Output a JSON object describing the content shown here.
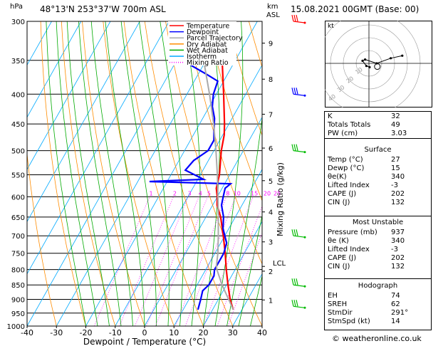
{
  "header": {
    "location": "48°13'N  253°37'W  700m  ASL",
    "datetime": "15.08.2021  00GMT  (Base: 00)",
    "hpa_label": "hPa",
    "km_label": "km",
    "asl_label": "ASL"
  },
  "skewt": {
    "pressure_levels": [
      300,
      350,
      400,
      450,
      500,
      550,
      600,
      650,
      700,
      750,
      800,
      850,
      900,
      950,
      1000
    ],
    "temp_ticks": [
      -40,
      -30,
      -20,
      -10,
      0,
      10,
      20,
      30,
      40
    ],
    "xlabel": "Dewpoint / Temperature (°C)",
    "height_ticks": [
      {
        "km": "1",
        "p": 902
      },
      {
        "km": "2",
        "p": 805
      },
      {
        "km": "3",
        "p": 717
      },
      {
        "km": "4",
        "p": 637
      },
      {
        "km": "5",
        "p": 563
      },
      {
        "km": "6",
        "p": 495
      },
      {
        "km": "7",
        "p": 433
      },
      {
        "km": "8",
        "p": 377
      },
      {
        "km": "9",
        "p": 327
      }
    ],
    "lcl_label": "LCL",
    "lcl_p": 790,
    "mixing_ratio_axis_label": "Mixing Ratio (g/kg)",
    "mixing_ratio_labels": [
      "1",
      "2",
      "3",
      "4",
      "5",
      "8",
      "10",
      "15",
      "20",
      "25"
    ],
    "legend": [
      {
        "label": "Temperature",
        "color": "#ff0000"
      },
      {
        "label": "Dewpoint",
        "color": "#0000ff"
      },
      {
        "label": "Parcel Trajectory",
        "color": "#aaaaaa"
      },
      {
        "label": "Dry Adiabat",
        "color": "#ff8c00"
      },
      {
        "label": "Wet Adiabat",
        "color": "#00aa00"
      },
      {
        "label": "Isotherm",
        "color": "#00aaff"
      },
      {
        "label": "Mixing Ratio",
        "color": "#ff00ff"
      }
    ]
  },
  "chart_data": {
    "type": "line",
    "title": "",
    "xlabel": "Dewpoint / Temperature (°C)",
    "ylabel": "hPa",
    "xlim": [
      -40,
      40
    ],
    "ylim": [
      1000,
      300
    ],
    "yscale": "log",
    "series": [
      {
        "name": "Temperature",
        "color": "#ff0000",
        "points": [
          [
            937,
            27
          ],
          [
            900,
            24
          ],
          [
            850,
            20.5
          ],
          [
            800,
            17
          ],
          [
            750,
            13.5
          ],
          [
            700,
            9.5
          ],
          [
            650,
            5
          ],
          [
            620,
            1.5
          ],
          [
            600,
            0
          ],
          [
            580,
            -2
          ],
          [
            550,
            -3.5
          ],
          [
            500,
            -7.5
          ],
          [
            470,
            -9.5
          ],
          [
            450,
            -11.5
          ],
          [
            400,
            -17.5
          ],
          [
            350,
            -24.5
          ],
          [
            320,
            -29
          ],
          [
            300,
            -33
          ]
        ]
      },
      {
        "name": "Dewpoint",
        "color": "#0000ff",
        "points": [
          [
            937,
            15
          ],
          [
            900,
            14
          ],
          [
            870,
            13
          ],
          [
            850,
            14
          ],
          [
            820,
            14
          ],
          [
            800,
            13
          ],
          [
            750,
            13
          ],
          [
            720,
            12
          ],
          [
            700,
            10
          ],
          [
            680,
            8
          ],
          [
            650,
            6
          ],
          [
            620,
            3
          ],
          [
            600,
            2
          ],
          [
            580,
            1
          ],
          [
            570,
            2
          ],
          [
            565,
            -26
          ],
          [
            560,
            -8
          ],
          [
            540,
            -16
          ],
          [
            520,
            -15
          ],
          [
            500,
            -12
          ],
          [
            480,
            -12
          ],
          [
            460,
            -14
          ],
          [
            440,
            -16
          ],
          [
            420,
            -19
          ],
          [
            400,
            -21
          ],
          [
            380,
            -22
          ],
          [
            370,
            -27
          ],
          [
            350,
            -38
          ],
          [
            330,
            -38
          ],
          [
            310,
            -38
          ],
          [
            300,
            -38
          ]
        ]
      },
      {
        "name": "Parcel Trajectory",
        "color": "#aaaaaa",
        "points": [
          [
            937,
            27
          ],
          [
            900,
            23.5
          ],
          [
            850,
            18.5
          ],
          [
            800,
            13.8
          ],
          [
            790,
            13
          ],
          [
            750,
            11
          ],
          [
            700,
            7.8
          ],
          [
            650,
            4.2
          ],
          [
            600,
            0.2
          ],
          [
            550,
            -4.2
          ],
          [
            500,
            -9.3
          ],
          [
            450,
            -15.2
          ],
          [
            400,
            -22.3
          ],
          [
            350,
            -30.8
          ],
          [
            300,
            -41.5
          ]
        ]
      }
    ]
  },
  "hodograph": {
    "label": "kt",
    "ring_labels": [
      "10",
      "20",
      "30",
      "40"
    ],
    "points": [
      [
        0.5,
        -3
      ],
      [
        -2,
        -2
      ],
      [
        -5,
        2
      ],
      [
        -3,
        3
      ],
      [
        6,
        0
      ],
      [
        17,
        4
      ],
      [
        26,
        6
      ]
    ],
    "storm_motion": {
      "dir": 291,
      "speed": 14
    }
  },
  "wind_barbs": [
    {
      "p": 300,
      "color": "#ff0000"
    },
    {
      "p": 400,
      "color": "#0000ff"
    },
    {
      "p": 500,
      "color": "#00bb00"
    },
    {
      "p": 700,
      "color": "#00bb00"
    },
    {
      "p": 850,
      "color": "#00bb00"
    },
    {
      "p": 925,
      "color": "#00bb00"
    }
  ],
  "indices": {
    "rows": [
      {
        "label": "K",
        "value": "32"
      },
      {
        "label": "Totals Totals",
        "value": "49"
      },
      {
        "label": "PW (cm)",
        "value": "3.03"
      }
    ],
    "surface_title": "Surface",
    "surface": [
      {
        "label": "Temp (°C)",
        "value": "27"
      },
      {
        "label": "Dewp (°C)",
        "value": "15"
      },
      {
        "label": "θe(K)",
        "value": "340"
      },
      {
        "label": "Lifted Index",
        "value": "-3"
      },
      {
        "label": "CAPE (J)",
        "value": "202"
      },
      {
        "label": "CIN (J)",
        "value": "132"
      }
    ],
    "mu_title": "Most Unstable",
    "mu": [
      {
        "label": "Pressure (mb)",
        "value": "937"
      },
      {
        "label": "θe (K)",
        "value": "340"
      },
      {
        "label": "Lifted Index",
        "value": "-3"
      },
      {
        "label": "CAPE (J)",
        "value": "202"
      },
      {
        "label": "CIN (J)",
        "value": "132"
      }
    ],
    "hodo_title": "Hodograph",
    "hodo": [
      {
        "label": "EH",
        "value": "74"
      },
      {
        "label": "SREH",
        "value": "62"
      },
      {
        "label": "StmDir",
        "value": "291°"
      },
      {
        "label": "StmSpd (kt)",
        "value": "14"
      }
    ]
  },
  "footer": {
    "copyright": "© weatheronline.co.uk"
  }
}
